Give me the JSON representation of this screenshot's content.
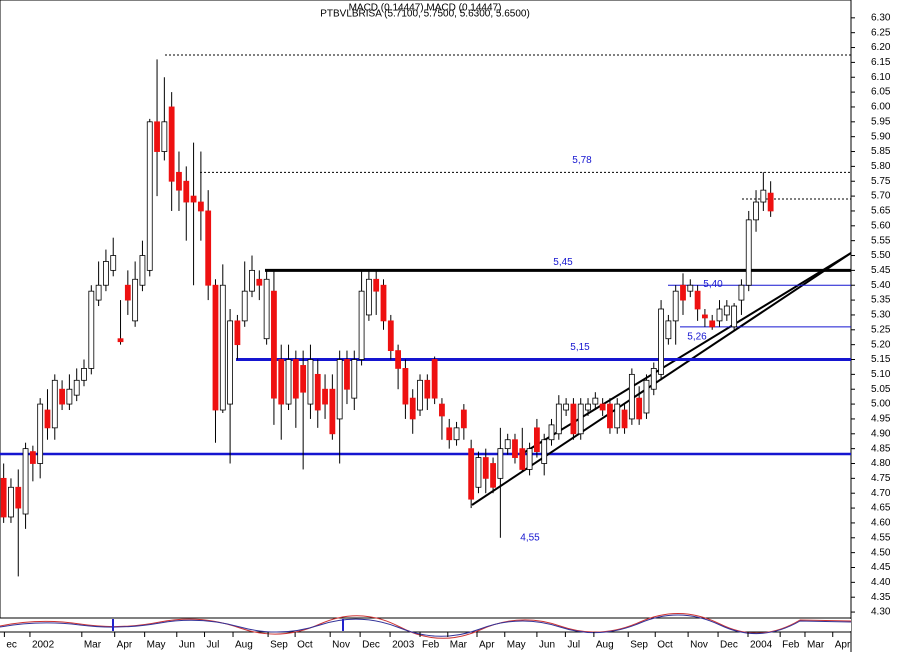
{
  "chart_data": {
    "type": "candlestick",
    "title": "PTBVLBRISA (5.7100, 5.7500, 5.6300, 5.6500)",
    "subtitle": "MACD (0.14447) MACD (0.14447)",
    "xlim": [
      -0.5,
      116
    ],
    "ylim": [
      4.28,
      6.36
    ],
    "up_color": "#ffffff",
    "down_color": "#ee1111",
    "open": [
      4.75,
      4.62,
      4.72,
      4.63,
      4.84,
      4.8,
      4.98,
      4.92,
      5.05,
      5.0,
      5.03,
      5.08,
      5.12,
      5.35,
      5.4,
      5.45,
      5.22,
      5.4,
      5.28,
      5.4,
      5.45,
      5.95,
      5.85,
      6.0,
      5.78,
      5.75,
      5.7,
      5.68,
      5.65,
      5.4,
      4.98,
      5.0,
      5.28,
      5.28,
      5.38,
      5.42,
      5.22,
      5.38,
      5.15,
      5.0,
      5.15,
      5.13,
      5.0,
      5.1,
      5.05,
      5.05,
      4.95,
      5.15,
      5.02,
      5.15,
      5.3,
      5.42,
      5.4,
      5.28,
      5.18,
      5.12,
      5.02,
      4.98,
      5.08,
      5.15,
      5.0,
      4.92,
      4.88,
      4.98,
      4.85,
      4.72,
      4.82,
      4.8,
      4.75,
      4.85,
      4.88,
      4.85,
      4.78,
      4.92,
      4.8,
      4.88,
      4.9,
      4.98,
      5.0,
      4.9,
      4.98,
      5.0,
      5.0,
      5.0,
      4.92,
      4.98,
      4.95,
      5.02,
      4.97,
      5.05,
      5.1,
      5.22,
      5.28,
      5.4,
      5.38,
      5.38,
      5.3,
      5.28,
      5.28,
      5.3,
      5.26,
      5.35,
      5.4,
      5.62,
      5.68,
      5.71
    ],
    "high": [
      4.8,
      4.75,
      4.78,
      4.87,
      4.86,
      5.02,
      5.05,
      5.1,
      5.08,
      5.1,
      5.12,
      5.15,
      5.4,
      5.48,
      5.52,
      5.56,
      5.35,
      5.45,
      5.48,
      5.55,
      5.96,
      6.16,
      6.1,
      6.05,
      5.85,
      5.8,
      5.88,
      5.85,
      5.72,
      5.42,
      5.47,
      5.32,
      5.3,
      5.48,
      5.5,
      5.45,
      5.45,
      5.45,
      5.2,
      5.2,
      5.18,
      5.18,
      5.2,
      5.15,
      5.1,
      5.1,
      5.18,
      5.18,
      5.18,
      5.45,
      5.45,
      5.45,
      5.42,
      5.3,
      5.2,
      5.15,
      5.05,
      5.1,
      5.1,
      5.16,
      5.02,
      4.95,
      4.94,
      5.0,
      4.88,
      4.84,
      4.85,
      4.82,
      4.92,
      4.9,
      4.9,
      4.92,
      4.87,
      4.95,
      4.9,
      4.95,
      5.03,
      5.02,
      5.02,
      5.02,
      5.02,
      5.04,
      5.02,
      5.02,
      5.02,
      5.0,
      5.12,
      5.06,
      5.1,
      5.14,
      5.35,
      5.3,
      5.4,
      5.44,
      5.42,
      5.4,
      5.32,
      5.3,
      5.35,
      5.35,
      5.34,
      5.42,
      5.65,
      5.72,
      5.78,
      5.75
    ],
    "low": [
      4.6,
      4.6,
      4.42,
      4.58,
      4.74,
      4.75,
      4.88,
      4.88,
      4.98,
      4.98,
      5.01,
      5.06,
      5.1,
      5.33,
      5.38,
      5.43,
      5.2,
      5.3,
      5.26,
      5.38,
      5.43,
      5.7,
      5.82,
      5.65,
      5.65,
      5.55,
      5.4,
      5.55,
      5.35,
      4.87,
      4.97,
      4.8,
      5.15,
      5.26,
      5.36,
      5.35,
      5.2,
      4.93,
      4.88,
      4.98,
      4.92,
      4.78,
      4.95,
      4.92,
      4.95,
      4.88,
      4.8,
      5.0,
      4.98,
      5.13,
      5.28,
      5.3,
      5.25,
      5.15,
      5.05,
      4.95,
      4.9,
      4.96,
      4.98,
      5.0,
      4.88,
      4.85,
      4.86,
      4.88,
      4.65,
      4.7,
      4.7,
      4.7,
      4.55,
      4.83,
      4.8,
      4.77,
      4.76,
      4.82,
      4.76,
      4.86,
      4.88,
      4.96,
      4.88,
      4.88,
      4.96,
      4.98,
      4.96,
      4.9,
      4.9,
      4.9,
      4.93,
      4.93,
      4.95,
      5.03,
      5.08,
      5.2,
      5.2,
      5.3,
      5.36,
      5.28,
      5.26,
      5.25,
      5.26,
      5.28,
      5.25,
      5.3,
      5.38,
      5.58,
      5.65,
      5.63
    ],
    "close": [
      4.62,
      4.72,
      4.65,
      4.85,
      4.8,
      5.0,
      4.92,
      5.08,
      5.0,
      5.05,
      5.08,
      5.12,
      5.38,
      5.4,
      5.48,
      5.5,
      5.21,
      5.35,
      5.42,
      5.5,
      5.95,
      5.85,
      5.95,
      5.75,
      5.72,
      5.68,
      5.68,
      5.65,
      5.4,
      4.98,
      5.4,
      5.28,
      5.2,
      5.38,
      5.45,
      5.4,
      5.42,
      5.02,
      5.0,
      5.15,
      5.02,
      5.04,
      5.15,
      4.98,
      5.0,
      4.9,
      5.15,
      5.05,
      5.15,
      5.38,
      5.42,
      5.38,
      5.28,
      5.18,
      5.12,
      5.0,
      4.95,
      5.08,
      5.02,
      5.02,
      4.96,
      4.88,
      4.92,
      4.92,
      4.68,
      4.82,
      4.75,
      4.72,
      4.85,
      4.88,
      4.82,
      4.78,
      4.85,
      4.84,
      4.88,
      4.93,
      5.0,
      5.0,
      4.9,
      5.0,
      5.0,
      5.02,
      4.98,
      4.92,
      5.0,
      4.92,
      5.1,
      4.95,
      5.08,
      5.12,
      5.32,
      5.28,
      5.38,
      5.35,
      5.4,
      5.32,
      5.29,
      5.26,
      5.32,
      5.33,
      5.33,
      5.4,
      5.62,
      5.68,
      5.72,
      5.65
    ],
    "yticks": [
      {
        "value": 4.3,
        "label": "4.30"
      },
      {
        "value": 4.35,
        "label": "4.35"
      },
      {
        "value": 4.4,
        "label": "4.40"
      },
      {
        "value": 4.45,
        "label": "4.45"
      },
      {
        "value": 4.5,
        "label": "4.50"
      },
      {
        "value": 4.55,
        "label": "4.55"
      },
      {
        "value": 4.6,
        "label": "4.60"
      },
      {
        "value": 4.65,
        "label": "4.65"
      },
      {
        "value": 4.7,
        "label": "4.70"
      },
      {
        "value": 4.75,
        "label": "4.75"
      },
      {
        "value": 4.8,
        "label": "4.80"
      },
      {
        "value": 4.85,
        "label": "4.85"
      },
      {
        "value": 4.9,
        "label": "4.90"
      },
      {
        "value": 4.95,
        "label": "4.95"
      },
      {
        "value": 5.0,
        "label": "5.00"
      },
      {
        "value": 5.05,
        "label": "5.05"
      },
      {
        "value": 5.1,
        "label": "5.10"
      },
      {
        "value": 5.15,
        "label": "5.15"
      },
      {
        "value": 5.2,
        "label": "5.20"
      },
      {
        "value": 5.25,
        "label": "5.25"
      },
      {
        "value": 5.3,
        "label": "5.30"
      },
      {
        "value": 5.35,
        "label": "5.35"
      },
      {
        "value": 5.4,
        "label": "5.40"
      },
      {
        "value": 5.45,
        "label": "5.45"
      },
      {
        "value": 5.5,
        "label": "5.50"
      },
      {
        "value": 5.55,
        "label": "5.55"
      },
      {
        "value": 5.6,
        "label": "5.60"
      },
      {
        "value": 5.65,
        "label": "5.65"
      },
      {
        "value": 5.7,
        "label": "5.70"
      },
      {
        "value": 5.75,
        "label": "5.75"
      },
      {
        "value": 5.8,
        "label": "5.80"
      },
      {
        "value": 5.85,
        "label": "5.85"
      },
      {
        "value": 5.9,
        "label": "5.90"
      },
      {
        "value": 5.95,
        "label": "5.95"
      },
      {
        "value": 6.0,
        "label": "6.00"
      },
      {
        "value": 6.05,
        "label": "6.05"
      },
      {
        "value": 6.1,
        "label": "6.10"
      },
      {
        "value": 6.15,
        "label": "6.15"
      },
      {
        "value": 6.2,
        "label": "6.20"
      },
      {
        "value": 6.25,
        "label": "6.25"
      },
      {
        "value": 6.3,
        "label": "6.30"
      }
    ],
    "xticks": [
      {
        "value": 0.1,
        "label": "ec"
      },
      {
        "value": 3.6,
        "label": "2002"
      },
      {
        "value": 10.7,
        "label": "Mar"
      },
      {
        "value": 15.2,
        "label": "Apr"
      },
      {
        "value": 19.3,
        "label": "May"
      },
      {
        "value": 23.7,
        "label": "Jun"
      },
      {
        "value": 27.5,
        "label": "Jul"
      },
      {
        "value": 31.4,
        "label": "Aug"
      },
      {
        "value": 36.2,
        "label": "Sep"
      },
      {
        "value": 39.9,
        "label": "Oct"
      },
      {
        "value": 44.7,
        "label": "Nov"
      },
      {
        "value": 48.8,
        "label": "Dec"
      },
      {
        "value": 52.9,
        "label": "2003"
      },
      {
        "value": 57,
        "label": "Feb"
      },
      {
        "value": 60.8,
        "label": "Mar"
      },
      {
        "value": 64.8,
        "label": "Apr"
      },
      {
        "value": 68.6,
        "label": "May"
      },
      {
        "value": 73,
        "label": "Jun"
      },
      {
        "value": 76.9,
        "label": "Jul"
      },
      {
        "value": 80.8,
        "label": "Aug"
      },
      {
        "value": 85.5,
        "label": "Sep"
      },
      {
        "value": 89.2,
        "label": "Oct"
      },
      {
        "value": 93.7,
        "label": "Nov"
      },
      {
        "value": 97.8,
        "label": "Dec"
      },
      {
        "value": 101.9,
        "label": "2004"
      },
      {
        "value": 106.3,
        "label": "Feb"
      },
      {
        "value": 109.7,
        "label": "Mar"
      },
      {
        "value": 113.5,
        "label": "Apr"
      }
    ],
    "annotations": [
      {
        "value": 5.78,
        "label": "5,78"
      },
      {
        "value": 5.45,
        "label": "5,45"
      },
      {
        "value": 5.4,
        "label": "5,40"
      },
      {
        "value": 5.26,
        "label": "5,26"
      },
      {
        "value": 5.15,
        "label": "5,15"
      },
      {
        "value": 4.55,
        "label": "4,55"
      }
    ]
  }
}
